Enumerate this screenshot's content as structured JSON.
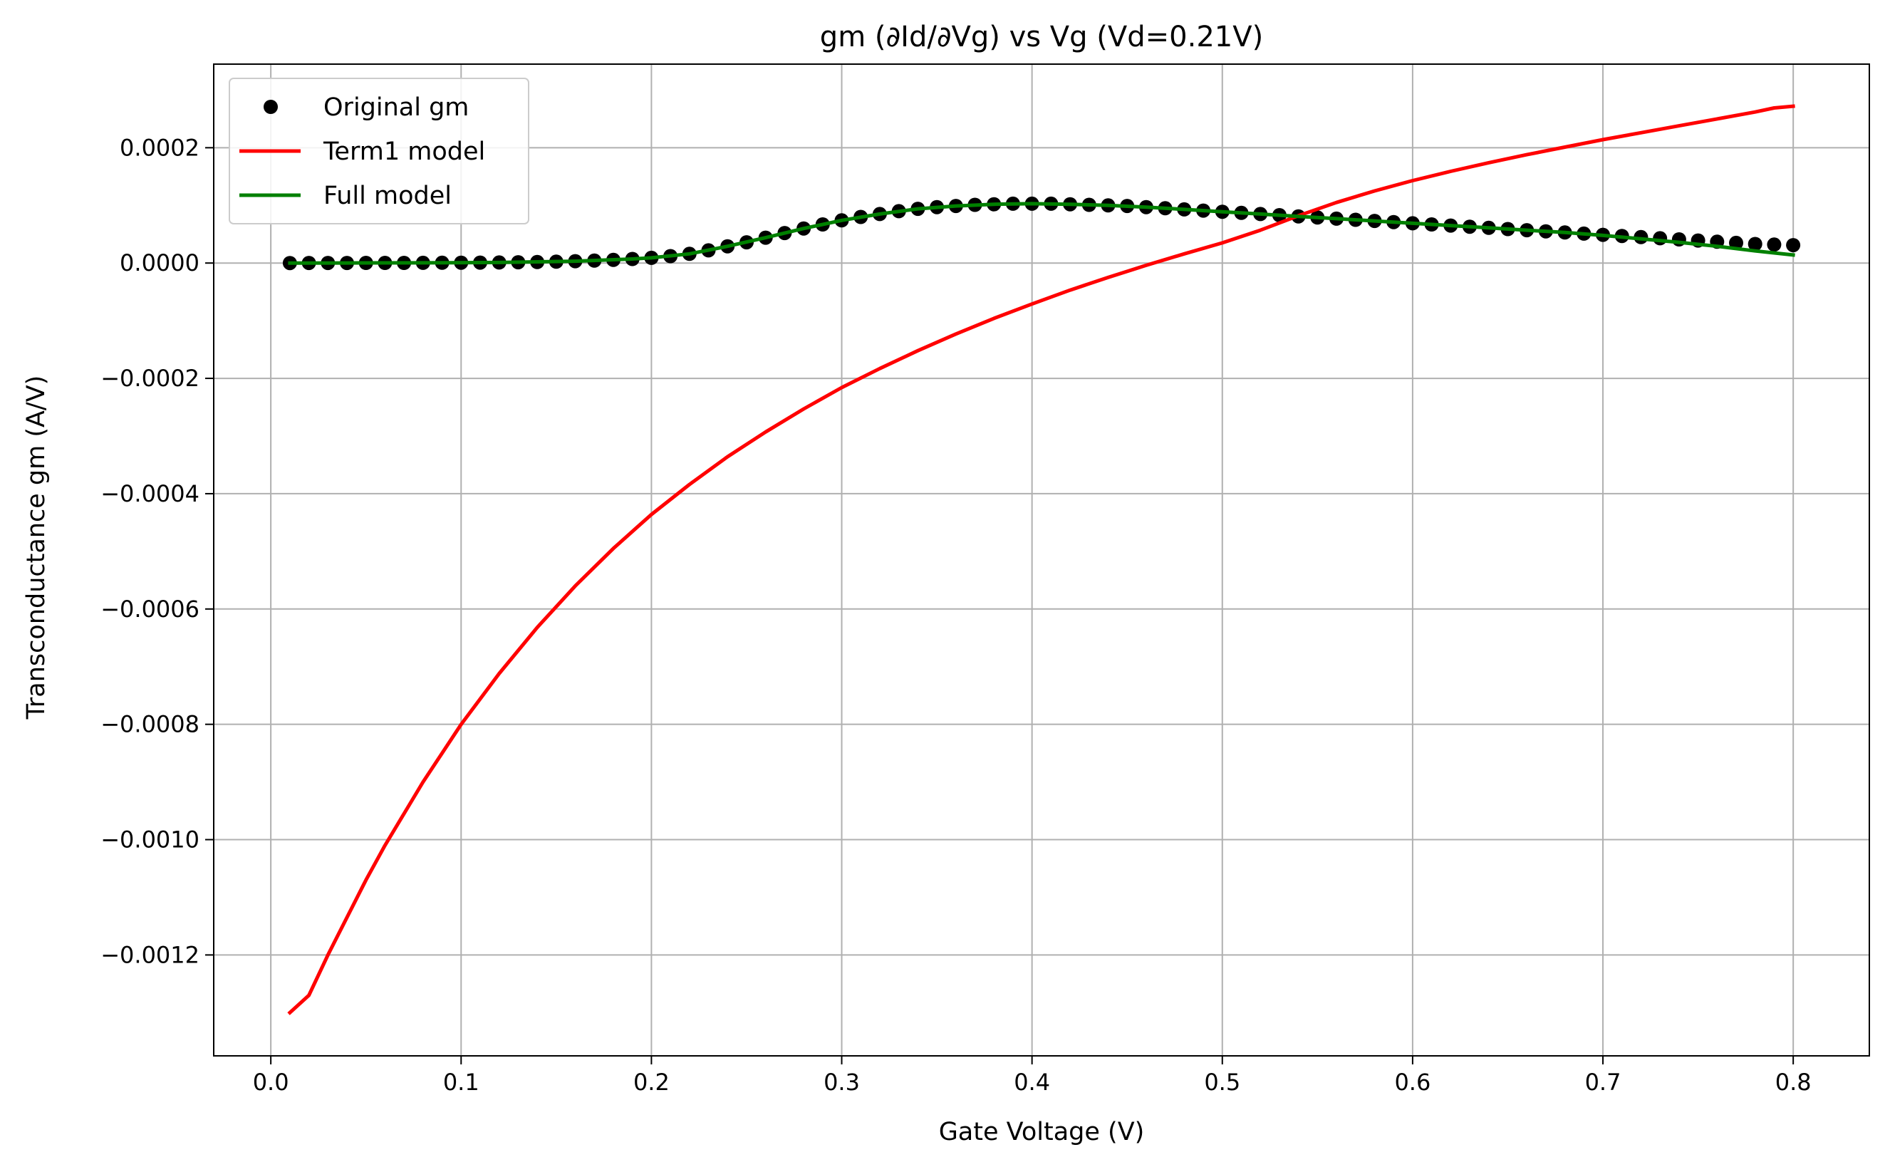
{
  "chart_data": {
    "type": "line",
    "title": "gm (∂Id/∂Vg) vs Vg (Vd=0.21V)",
    "xlabel": "Gate Voltage (V)",
    "ylabel": "Transconductance gm (A/V)",
    "xlim": [
      -0.03,
      0.84
    ],
    "ylim": [
      -0.001375,
      0.000345
    ],
    "xticks": [
      0.0,
      0.1,
      0.2,
      0.3,
      0.4,
      0.5,
      0.6,
      0.7,
      0.8
    ],
    "xtick_labels": [
      "0.0",
      "0.1",
      "0.2",
      "0.3",
      "0.4",
      "0.5",
      "0.6",
      "0.7",
      "0.8"
    ],
    "yticks": [
      0.0002,
      0.0,
      -0.0002,
      -0.0004,
      -0.0006,
      -0.0008,
      -0.001,
      -0.0012
    ],
    "ytick_labels": [
      "0.0002",
      "0.0000",
      "−0.0002",
      "−0.0004",
      "−0.0006",
      "−0.0008",
      "−0.0010",
      "−0.0012"
    ],
    "grid": true,
    "legend_position": "upper-left",
    "series": [
      {
        "name": "Original gm",
        "kind": "scatter",
        "color": "#000000",
        "x": [
          0.01,
          0.02,
          0.03,
          0.04,
          0.05,
          0.06,
          0.07,
          0.08,
          0.09,
          0.1,
          0.11,
          0.12,
          0.13,
          0.14,
          0.15,
          0.16,
          0.17,
          0.18,
          0.19,
          0.2,
          0.21,
          0.22,
          0.23,
          0.24,
          0.25,
          0.26,
          0.27,
          0.28,
          0.29,
          0.3,
          0.31,
          0.32,
          0.33,
          0.34,
          0.35,
          0.36,
          0.37,
          0.38,
          0.39,
          0.4,
          0.41,
          0.42,
          0.43,
          0.44,
          0.45,
          0.46,
          0.47,
          0.48,
          0.49,
          0.5,
          0.51,
          0.52,
          0.53,
          0.54,
          0.55,
          0.56,
          0.57,
          0.58,
          0.59,
          0.6,
          0.61,
          0.62,
          0.63,
          0.64,
          0.65,
          0.66,
          0.67,
          0.68,
          0.69,
          0.7,
          0.71,
          0.72,
          0.73,
          0.74,
          0.75,
          0.76,
          0.77,
          0.78,
          0.79,
          0.8
        ],
        "y": [
          0.0,
          1e-07,
          1e-07,
          1e-07,
          2e-07,
          2e-07,
          3e-07,
          4e-07,
          5e-07,
          6e-07,
          8e-07,
          1e-06,
          1.4e-06,
          1.8e-06,
          2.4e-06,
          3.2e-06,
          4.2e-06,
          5.5e-06,
          7e-06,
          9e-06,
          1.2e-05,
          1.6e-05,
          2.2e-05,
          2.9e-05,
          3.6e-05,
          4.4e-05,
          5.2e-05,
          6e-05,
          6.7e-05,
          7.4e-05,
          8e-05,
          8.5e-05,
          9e-05,
          9.4e-05,
          9.7e-05,
          9.9e-05,
          0.000101,
          0.000102,
          0.000103,
          0.000103,
          0.000103,
          0.000102,
          0.000101,
          0.0001,
          9.9e-05,
          9.7e-05,
          9.5e-05,
          9.3e-05,
          9.1e-05,
          8.9e-05,
          8.7e-05,
          8.5e-05,
          8.3e-05,
          8.1e-05,
          7.9e-05,
          7.7e-05,
          7.5e-05,
          7.3e-05,
          7.1e-05,
          6.9e-05,
          6.7e-05,
          6.5e-05,
          6.3e-05,
          6.1e-05,
          5.9e-05,
          5.7e-05,
          5.5e-05,
          5.3e-05,
          5.1e-05,
          4.9e-05,
          4.7e-05,
          4.5e-05,
          4.3e-05,
          4.1e-05,
          3.9e-05,
          3.7e-05,
          3.5e-05,
          3.3e-05,
          3.2e-05,
          3.1e-05
        ]
      },
      {
        "name": "Term1 model",
        "kind": "line",
        "color": "#ff0000",
        "x": [
          0.01,
          0.02,
          0.03,
          0.04,
          0.05,
          0.06,
          0.07,
          0.08,
          0.09,
          0.1,
          0.12,
          0.14,
          0.16,
          0.18,
          0.2,
          0.22,
          0.24,
          0.26,
          0.28,
          0.3,
          0.32,
          0.34,
          0.36,
          0.38,
          0.4,
          0.42,
          0.44,
          0.46,
          0.48,
          0.5,
          0.52,
          0.54,
          0.56,
          0.58,
          0.6,
          0.62,
          0.64,
          0.66,
          0.68,
          0.7,
          0.72,
          0.74,
          0.76,
          0.78,
          0.79,
          0.8
        ],
        "y": [
          -0.0013,
          -0.00127,
          -0.0012,
          -0.001135,
          -0.00107,
          -0.00101,
          -0.000955,
          -0.0009,
          -0.00085,
          -0.0008,
          -0.000712,
          -0.000632,
          -0.00056,
          -0.000495,
          -0.000436,
          -0.000384,
          -0.000336,
          -0.000293,
          -0.000253,
          -0.000216,
          -0.000183,
          -0.000152,
          -0.000123,
          -9.6e-05,
          -7.1e-05,
          -4.7e-05,
          -2.5e-05,
          -4e-06,
          1.6e-05,
          3.5e-05,
          5.7e-05,
          8.2e-05,
          0.000105,
          0.000125,
          0.000143,
          0.000159,
          0.000174,
          0.000188,
          0.000201,
          0.000214,
          0.000226,
          0.000238,
          0.00025,
          0.000262,
          0.000269,
          0.000272
        ]
      },
      {
        "name": "Full model",
        "kind": "line",
        "color": "#008000",
        "x": [
          0.01,
          0.04,
          0.08,
          0.12,
          0.16,
          0.19,
          0.2,
          0.22,
          0.24,
          0.26,
          0.28,
          0.3,
          0.32,
          0.34,
          0.36,
          0.38,
          0.4,
          0.42,
          0.44,
          0.46,
          0.48,
          0.5,
          0.52,
          0.54,
          0.56,
          0.58,
          0.6,
          0.62,
          0.64,
          0.66,
          0.68,
          0.7,
          0.72,
          0.74,
          0.76,
          0.78,
          0.8
        ],
        "y": [
          0.0,
          1e-07,
          4e-07,
          1e-06,
          3.2e-06,
          7e-06,
          9e-06,
          1.6e-05,
          2.9e-05,
          4.4e-05,
          6e-05,
          7.4e-05,
          8.5e-05,
          9.4e-05,
          9.9e-05,
          0.000102,
          0.000103,
          0.000102,
          0.0001,
          9.7e-05,
          9.3e-05,
          8.9e-05,
          8.5e-05,
          8.1e-05,
          7.7e-05,
          7.3e-05,
          6.9e-05,
          6.5e-05,
          6.1e-05,
          5.7e-05,
          5.3e-05,
          4.8e-05,
          4.2e-05,
          3.6e-05,
          2.9e-05,
          2.1e-05,
          1.4e-05
        ]
      }
    ]
  }
}
